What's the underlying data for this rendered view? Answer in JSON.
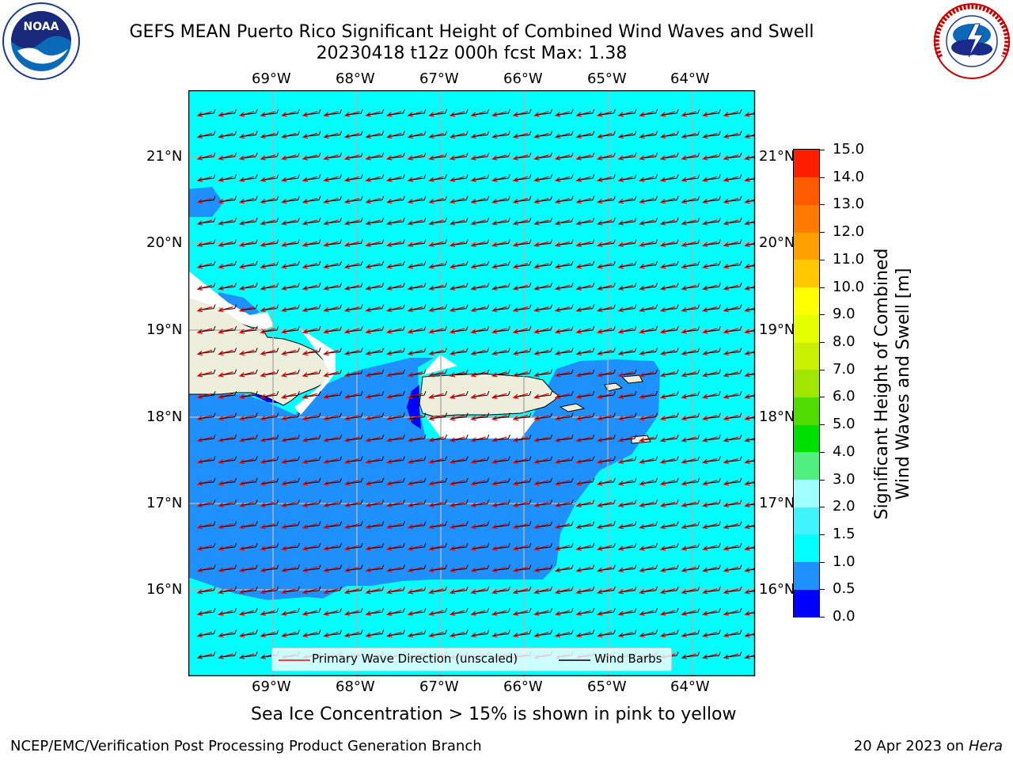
{
  "header": {
    "title_line1": "GEFS MEAN Puerto Rico Significant Height of Combined Wind Waves and Swell",
    "title_line2": "20230418 t12z 000h fcst   Max: 1.38"
  },
  "logos": {
    "noaa_text": "NOAA",
    "noaa_ring": "NATIONAL OCEANIC AND ATMOSPHERIC ADMINISTRATION · U.S. DEPARTMENT OF COMMERCE",
    "nws_ring": "NATIONAL WEATHER SERVICE"
  },
  "map": {
    "lon_labels": [
      "69°W",
      "68°W",
      "67°W",
      "66°W",
      "65°W",
      "64°W"
    ],
    "lat_labels": [
      "21°N",
      "20°N",
      "19°N",
      "18°N",
      "17°N",
      "16°N"
    ],
    "legend": {
      "wave": "Primary Wave Direction (unscaled)",
      "wind": "Wind Barbs"
    },
    "colors": {
      "ocean_cyan": "#00ffff",
      "band_blue": "#1e90ff",
      "deep_blue": "#0000ff",
      "land": "#eeeedd",
      "arrow": "#ff0000"
    }
  },
  "colorbar": {
    "label_line1": "Significant Height of Combined",
    "label_line2": "Wind Waves and Swell [m]",
    "ticks": [
      "0.0",
      "0.5",
      "1.0",
      "1.5",
      "2.0",
      "3.0",
      "4.0",
      "5.0",
      "6.0",
      "7.0",
      "8.0",
      "9.0",
      "10.0",
      "11.0",
      "12.0",
      "13.0",
      "14.0",
      "15.0"
    ],
    "colors": [
      "#0000ff",
      "#1e90ff",
      "#00ffff",
      "#40f4ff",
      "#a0ffff",
      "#50f080",
      "#00e000",
      "#50dc00",
      "#a0e600",
      "#c8f000",
      "#e6ff00",
      "#ffff00",
      "#ffc800",
      "#ffa000",
      "#ff7a00",
      "#ff5a00",
      "#ff1e00"
    ]
  },
  "footer": {
    "note": "Sea Ice Concentration > 15% is shown in pink to yellow",
    "credit": "NCEP/EMC/Verification Post Processing Product Generation Branch",
    "date": "20 Apr 2023 on ",
    "host": "Hera"
  }
}
